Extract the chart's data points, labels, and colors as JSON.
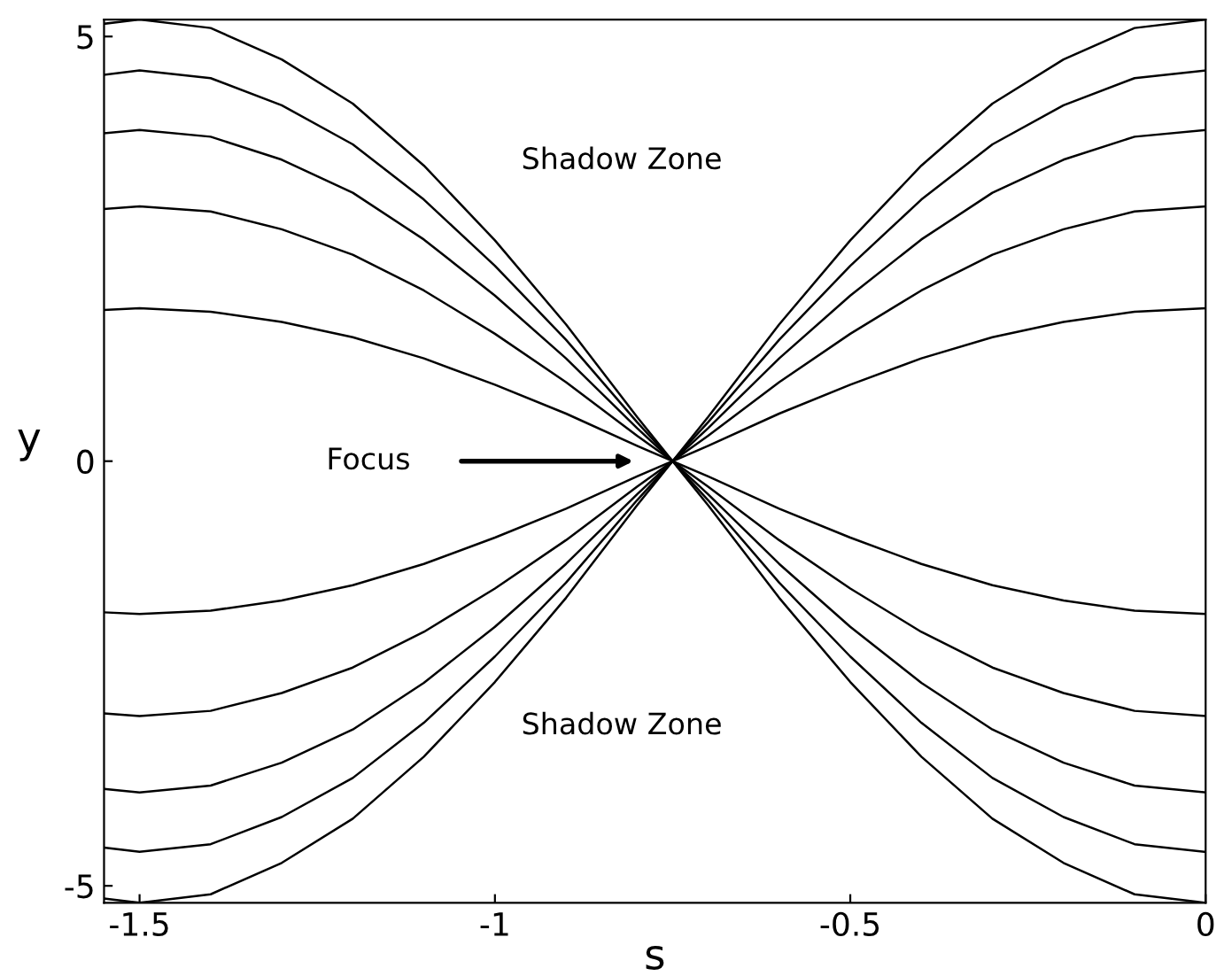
{
  "chart_data": {
    "type": "line",
    "xlabel": "s",
    "ylabel": "y",
    "x": [
      -1.55,
      -1.5,
      -1.4,
      -1.3,
      -1.2,
      -1.1,
      -1.0,
      -0.9,
      -0.8,
      -0.75,
      -0.7,
      -0.6,
      -0.5,
      -0.4,
      -0.3,
      -0.2,
      -0.1,
      0
    ],
    "series": [
      {
        "color": "#000000",
        "values": [
          1.78,
          1.8,
          1.76,
          1.64,
          1.46,
          1.21,
          0.9,
          0.56,
          0.18,
          0,
          -0.18,
          -0.56,
          -0.9,
          -1.21,
          -1.46,
          -1.64,
          -1.76,
          -1.8
        ]
      },
      {
        "color": "#000000",
        "values": [
          2.97,
          3,
          2.94,
          2.73,
          2.43,
          2.01,
          1.5,
          0.93,
          0.3,
          0,
          -0.3,
          -0.93,
          -1.5,
          -2.01,
          -2.43,
          -2.73,
          -2.94,
          -3
        ]
      },
      {
        "color": "#000000",
        "values": [
          3.86,
          3.9,
          3.82,
          3.55,
          3.16,
          2.61,
          1.95,
          1.21,
          0.39,
          0,
          -0.39,
          -1.21,
          -1.95,
          -2.61,
          -3.16,
          -3.55,
          -3.82,
          -3.9
        ]
      },
      {
        "color": "#000000",
        "values": [
          4.55,
          4.6,
          4.51,
          4.19,
          3.73,
          3.08,
          2.3,
          1.43,
          0.46,
          0,
          -0.46,
          -1.43,
          -2.3,
          -3.08,
          -3.73,
          -4.19,
          -4.51,
          -4.6
        ]
      },
      {
        "color": "#000000",
        "values": [
          5.15,
          5.2,
          5.1,
          4.73,
          4.21,
          3.48,
          2.6,
          1.61,
          0.52,
          0,
          -0.52,
          -1.61,
          -2.6,
          -3.48,
          -4.21,
          -4.73,
          -5.1,
          -5.2
        ]
      },
      {
        "color": "#000000",
        "values": [
          -1.78,
          -1.8,
          -1.76,
          -1.64,
          -1.46,
          -1.21,
          -0.9,
          -0.56,
          -0.18,
          0,
          0.18,
          0.56,
          0.9,
          1.21,
          1.46,
          1.64,
          1.76,
          1.8
        ]
      },
      {
        "color": "#000000",
        "values": [
          -2.97,
          -3,
          -2.94,
          -2.73,
          -2.43,
          -2.01,
          -1.5,
          -0.93,
          -0.3,
          0,
          0.3,
          0.93,
          1.5,
          2.01,
          2.43,
          2.73,
          2.94,
          3
        ]
      },
      {
        "color": "#000000",
        "values": [
          -3.86,
          -3.9,
          -3.82,
          -3.55,
          -3.16,
          -2.61,
          -1.95,
          -1.21,
          -0.39,
          0,
          0.39,
          1.21,
          1.95,
          2.61,
          3.16,
          3.55,
          3.82,
          3.9
        ]
      },
      {
        "color": "#000000",
        "values": [
          -4.55,
          -4.6,
          -4.51,
          -4.19,
          -3.73,
          -3.08,
          -2.3,
          -1.43,
          -0.46,
          0,
          0.46,
          1.43,
          2.3,
          3.08,
          3.73,
          4.19,
          4.51,
          4.6
        ]
      },
      {
        "color": "#000000",
        "values": [
          -5.15,
          -5.2,
          -5.1,
          -4.73,
          -4.21,
          -3.48,
          -2.6,
          -1.61,
          -0.52,
          0,
          0.52,
          1.61,
          2.6,
          3.48,
          4.21,
          4.73,
          5.1,
          5.2
        ]
      }
    ],
    "xlim": [
      -1.55,
      0
    ],
    "ylim": [
      -5.2,
      5.2
    ],
    "xticks": [
      -1.5,
      -1,
      -0.5,
      0
    ],
    "yticks": [
      -5,
      0,
      5
    ],
    "annotations": [
      "Shadow Zone",
      "Shadow Zone",
      "Focus"
    ],
    "grid": false,
    "marker": "none",
    "line_style": "solid"
  }
}
